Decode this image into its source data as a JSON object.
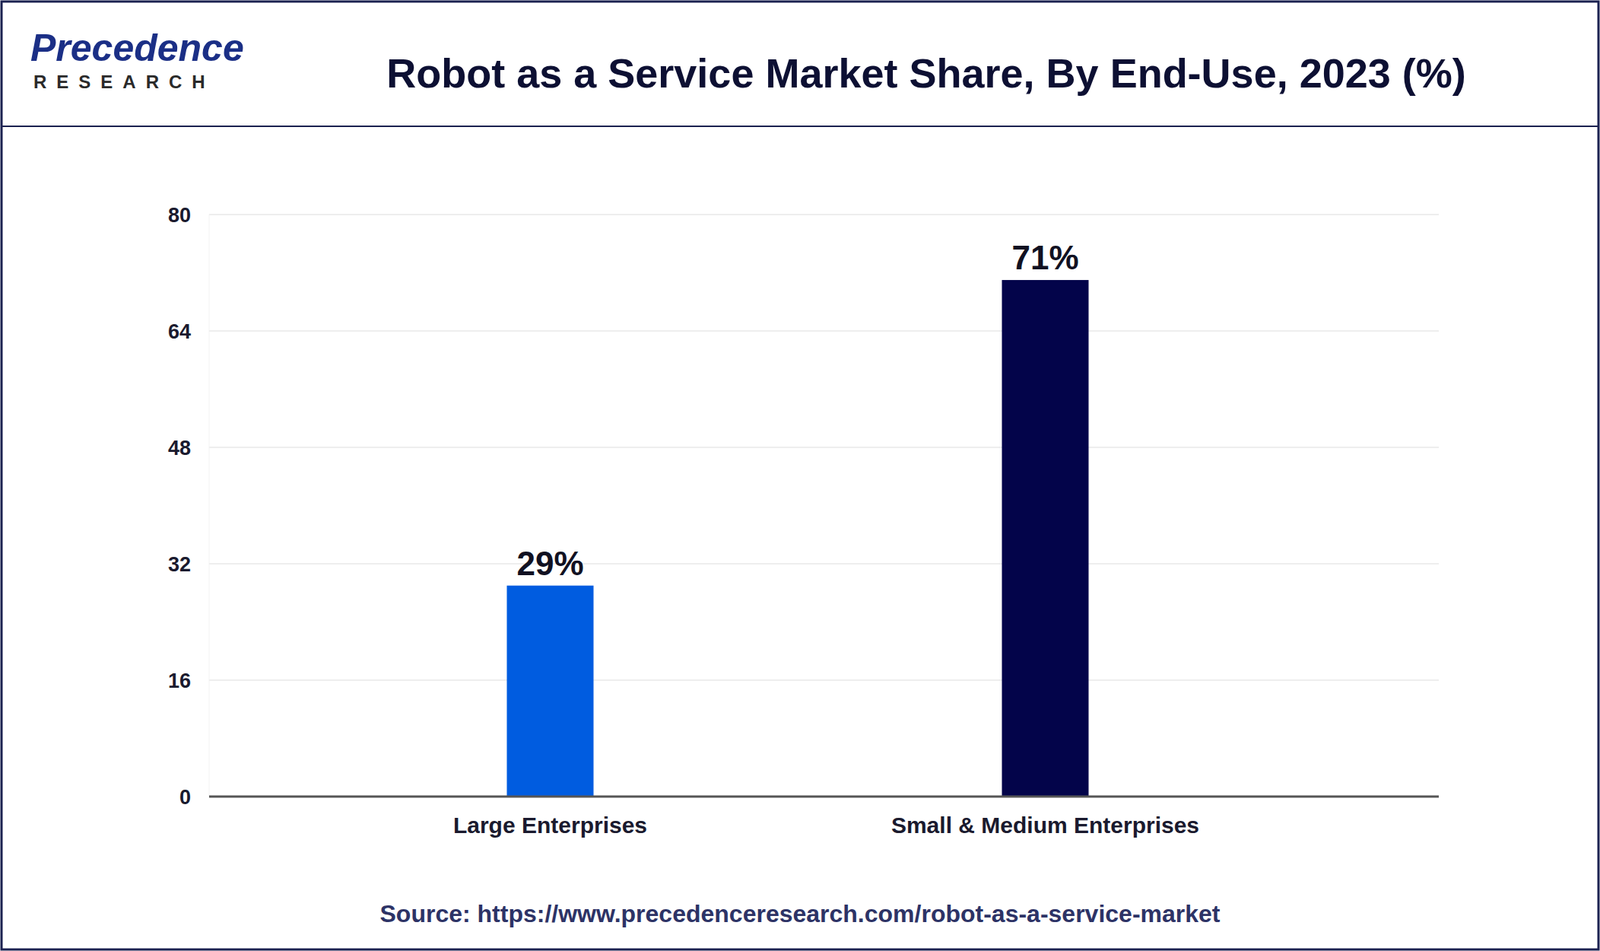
{
  "logo": {
    "name": "Precedence",
    "tagline": "RESEARCH"
  },
  "source": "Source: https://www.precedenceresearch.com/robot-as-a-service-market",
  "chart_data": {
    "type": "bar",
    "title": "Robot as a Service Market Share, By End-Use, 2023 (%)",
    "categories": [
      "Large Enterprises",
      "Small & Medium Enterprises"
    ],
    "values": [
      29,
      71
    ],
    "value_labels": [
      "29%",
      "71%"
    ],
    "colors": [
      "#005ce0",
      "#03044a"
    ],
    "ylim": [
      0,
      80
    ],
    "yticks": [
      0,
      16,
      32,
      48,
      64,
      80
    ],
    "grid": true,
    "data_labels": true
  }
}
